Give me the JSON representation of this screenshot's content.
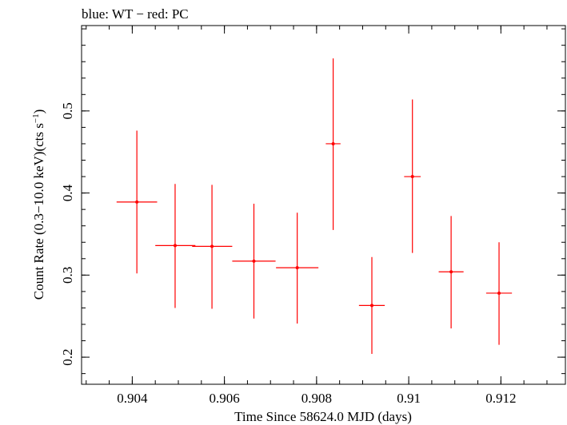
{
  "chart_data": {
    "type": "scatter",
    "title": "blue: WT − red: PC",
    "xlabel": "Time Since 58624.0 MJD (days)",
    "ylabel_main": "Count Rate (0.3−10.0 keV)(cts s",
    "ylabel_sup": "−1",
    "ylabel_end": ")",
    "xlim": [
      0.9029,
      0.9134
    ],
    "ylim": [
      0.167,
      0.604
    ],
    "x_ticks": [
      0.904,
      0.906,
      0.908,
      0.91,
      0.912
    ],
    "x_tick_labels": [
      "0.904",
      "0.906",
      "0.908",
      "0.91",
      "0.912"
    ],
    "y_ticks": [
      0.2,
      0.3,
      0.4,
      0.5
    ],
    "y_tick_labels": [
      "0.2",
      "0.3",
      "0.4",
      "0.5"
    ],
    "x_minor_step": 0.0005,
    "y_minor_step": 0.02,
    "grid": false,
    "color": "#ff0000",
    "series": [
      {
        "points": [
          {
            "x": 0.9041,
            "xerr_lo": 0.00044,
            "xerr_hi": 0.00044,
            "y": 0.389,
            "yerr_lo": 0.087,
            "yerr_hi": 0.087
          },
          {
            "x": 0.90493,
            "xerr_lo": 0.00043,
            "xerr_hi": 0.00044,
            "y": 0.336,
            "yerr_lo": 0.076,
            "yerr_hi": 0.075
          },
          {
            "x": 0.90573,
            "xerr_lo": 0.00043,
            "xerr_hi": 0.00044,
            "y": 0.335,
            "yerr_lo": 0.076,
            "yerr_hi": 0.075
          },
          {
            "x": 0.90664,
            "xerr_lo": 0.00047,
            "xerr_hi": 0.00047,
            "y": 0.317,
            "yerr_lo": 0.07,
            "yerr_hi": 0.07
          },
          {
            "x": 0.90758,
            "xerr_lo": 0.00046,
            "xerr_hi": 0.00046,
            "y": 0.309,
            "yerr_lo": 0.068,
            "yerr_hi": 0.067
          },
          {
            "x": 0.90836,
            "xerr_lo": 0.00016,
            "xerr_hi": 0.00016,
            "y": 0.46,
            "yerr_lo": 0.105,
            "yerr_hi": 0.104
          },
          {
            "x": 0.9092,
            "xerr_lo": 0.00028,
            "xerr_hi": 0.00028,
            "y": 0.263,
            "yerr_lo": 0.059,
            "yerr_hi": 0.059
          },
          {
            "x": 0.91008,
            "xerr_lo": 0.00018,
            "xerr_hi": 0.00018,
            "y": 0.42,
            "yerr_lo": 0.093,
            "yerr_hi": 0.094
          },
          {
            "x": 0.91092,
            "xerr_lo": 0.00027,
            "xerr_hi": 0.00027,
            "y": 0.304,
            "yerr_lo": 0.069,
            "yerr_hi": 0.068
          },
          {
            "x": 0.91196,
            "xerr_lo": 0.00028,
            "xerr_hi": 0.00028,
            "y": 0.278,
            "yerr_lo": 0.063,
            "yerr_hi": 0.062
          }
        ]
      }
    ]
  }
}
